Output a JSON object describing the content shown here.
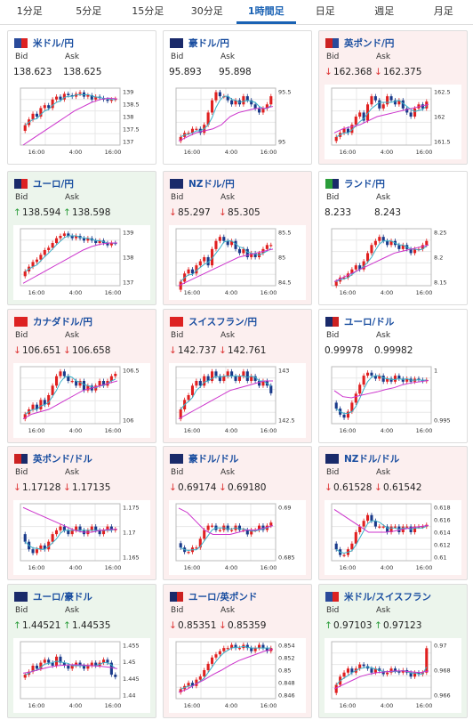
{
  "tabs": [
    {
      "label": "1分足",
      "active": false
    },
    {
      "label": "5分足",
      "active": false
    },
    {
      "label": "15分足",
      "active": false
    },
    {
      "label": "30分足",
      "active": false
    },
    {
      "label": "1時間足",
      "active": true
    },
    {
      "label": "日足",
      "active": false
    },
    {
      "label": "週足",
      "active": false
    },
    {
      "label": "月足",
      "active": false
    }
  ],
  "bid_label": "Bid",
  "ask_label": "Ask",
  "x_ticks": [
    "16:00",
    "4:00",
    "16:00"
  ],
  "colors": {
    "up": "#2a9d3a",
    "down": "#d33333",
    "ma_short": "#3ab0c8",
    "ma_long": "#cc33cc",
    "candle_up": "#e02020",
    "candle_down": "#1a3a8a"
  },
  "cards": [
    {
      "pair": "米ドル/円",
      "flag": [
        "#2a4a9a",
        "#d22"
      ],
      "state": "neutral",
      "dir": "",
      "bid": "138.623",
      "ask": "138.625",
      "chart_data": {
        "type": "candlestick",
        "y_ticks": [
          "139",
          "138.5",
          "138",
          "137.5",
          "137"
        ],
        "ylim": [
          137,
          139
        ],
        "closes": [
          137.7,
          137.9,
          138.1,
          138.0,
          138.3,
          138.4,
          138.3,
          138.6,
          138.7,
          138.6,
          138.8,
          138.75,
          138.7,
          138.8,
          138.85,
          138.7,
          138.75,
          138.6,
          138.7,
          138.65,
          138.6,
          138.55,
          138.6,
          138.62
        ],
        "ma_long": [
          137.0,
          137.2,
          137.4,
          137.6,
          137.8,
          138.0,
          138.2,
          138.35,
          138.5,
          138.6,
          138.65,
          138.62
        ]
      }
    },
    {
      "pair": "豪ドル/円",
      "flag": [
        "#1a2a6a",
        "#1a2a6a"
      ],
      "state": "neutral",
      "dir": "",
      "bid": "95.893",
      "ask": "95.898",
      "chart_data": {
        "type": "candlestick",
        "y_ticks": [
          "95.5",
          "95"
        ],
        "ylim": [
          94.7,
          96.1
        ],
        "closes": [
          94.9,
          95.0,
          95.0,
          95.1,
          95.1,
          95.0,
          95.2,
          95.5,
          95.8,
          96.0,
          95.9,
          95.9,
          95.8,
          95.7,
          95.8,
          95.7,
          95.9,
          95.8,
          95.7,
          95.6,
          95.5,
          95.6,
          95.7,
          95.9
        ],
        "ma_long": [
          94.8,
          94.9,
          95.0,
          95.05,
          95.1,
          95.2,
          95.4,
          95.5,
          95.55,
          95.6,
          95.6,
          95.65
        ]
      }
    },
    {
      "pair": "英ポンド/円",
      "flag": [
        "#c22",
        "#2a4a9a"
      ],
      "state": "down",
      "dir": "down",
      "bid": "162.368",
      "ask": "162.375",
      "chart_data": {
        "type": "candlestick",
        "y_ticks": [
          "162.5",
          "162",
          "161.5"
        ],
        "ylim": [
          161.3,
          162.7
        ],
        "closes": [
          161.5,
          161.6,
          161.7,
          161.6,
          161.8,
          162.0,
          162.1,
          161.9,
          162.3,
          162.5,
          162.4,
          162.2,
          162.3,
          162.5,
          162.4,
          162.3,
          162.4,
          162.2,
          162.1,
          162.0,
          162.2,
          162.3,
          162.2,
          162.37
        ],
        "ma_long": [
          161.6,
          161.7,
          161.75,
          161.8,
          161.9,
          162.0,
          162.05,
          162.1,
          162.15,
          162.2,
          162.25,
          162.3
        ]
      }
    },
    {
      "pair": "ユーロ/円",
      "flag": [
        "#1a2a6a",
        "#d22"
      ],
      "state": "up",
      "dir": "up",
      "bid": "138.594",
      "ask": "138.598",
      "chart_data": {
        "type": "candlestick",
        "y_ticks": [
          "139",
          "138",
          "137"
        ],
        "ylim": [
          136.8,
          139.2
        ],
        "closes": [
          137.4,
          137.6,
          137.8,
          137.9,
          138.1,
          138.3,
          138.4,
          138.6,
          138.8,
          138.9,
          139.0,
          138.9,
          138.8,
          138.9,
          138.8,
          138.7,
          138.8,
          138.7,
          138.6,
          138.7,
          138.6,
          138.5,
          138.6,
          138.59
        ],
        "ma_long": [
          136.9,
          137.1,
          137.3,
          137.5,
          137.7,
          137.9,
          138.1,
          138.3,
          138.45,
          138.55,
          138.6,
          138.6
        ]
      }
    },
    {
      "pair": "NZドル/円",
      "flag": [
        "#1a2a6a",
        "#1a2a6a"
      ],
      "state": "down",
      "dir": "down",
      "bid": "85.297",
      "ask": "85.305",
      "chart_data": {
        "type": "candlestick",
        "y_ticks": [
          "85.5",
          "85",
          "84.5"
        ],
        "ylim": [
          84.3,
          85.7
        ],
        "closes": [
          84.4,
          84.6,
          84.7,
          84.6,
          84.8,
          84.9,
          85.0,
          84.8,
          85.2,
          85.4,
          85.5,
          85.4,
          85.3,
          85.4,
          85.2,
          85.1,
          85.2,
          85.0,
          85.1,
          85.0,
          85.1,
          85.2,
          85.3,
          85.3
        ],
        "ma_long": [
          84.3,
          84.4,
          84.5,
          84.6,
          84.7,
          84.8,
          84.9,
          85.0,
          85.05,
          85.1,
          85.15,
          85.2
        ]
      }
    },
    {
      "pair": "ランド/円",
      "flag": [
        "#2a9d3a",
        "#1a2a6a"
      ],
      "state": "neutral",
      "dir": "",
      "bid": "8.233",
      "ask": "8.243",
      "chart_data": {
        "type": "candlestick",
        "y_ticks": [
          "8.25",
          "8.2",
          "8.15"
        ],
        "ylim": [
          8.13,
          8.27
        ],
        "closes": [
          8.14,
          8.15,
          8.15,
          8.16,
          8.17,
          8.18,
          8.17,
          8.19,
          8.21,
          8.23,
          8.24,
          8.25,
          8.24,
          8.23,
          8.24,
          8.23,
          8.22,
          8.23,
          8.22,
          8.21,
          8.22,
          8.22,
          8.23,
          8.24
        ],
        "ma_long": [
          8.14,
          8.15,
          8.16,
          8.17,
          8.18,
          8.19,
          8.2,
          8.21,
          8.215,
          8.22,
          8.225,
          8.23
        ]
      }
    },
    {
      "pair": "カナダドル/円",
      "flag": [
        "#d22",
        "#d22"
      ],
      "state": "down",
      "dir": "down",
      "bid": "106.651",
      "ask": "106.658",
      "chart_data": {
        "type": "candlestick",
        "y_ticks": [
          "106.5",
          "106"
        ],
        "ylim": [
          105.6,
          106.8
        ],
        "closes": [
          105.8,
          105.9,
          106.0,
          105.9,
          106.1,
          106.0,
          106.2,
          106.4,
          106.6,
          106.7,
          106.6,
          106.5,
          106.5,
          106.4,
          106.5,
          106.3,
          106.4,
          106.3,
          106.4,
          106.5,
          106.4,
          106.5,
          106.6,
          106.65
        ],
        "ma_long": [
          105.7,
          105.8,
          105.85,
          105.9,
          106.0,
          106.1,
          106.2,
          106.3,
          106.35,
          106.4,
          106.45,
          106.5
        ]
      }
    },
    {
      "pair": "スイスフラン/円",
      "flag": [
        "#d22",
        "#d22"
      ],
      "state": "down",
      "dir": "down",
      "bid": "142.737",
      "ask": "142.761",
      "chart_data": {
        "type": "candlestick",
        "y_ticks": [
          "143",
          "142.5"
        ],
        "ylim": [
          142.1,
          143.3
        ],
        "closes": [
          142.4,
          142.6,
          142.7,
          142.9,
          143.0,
          142.9,
          143.1,
          143.0,
          143.2,
          143.1,
          143.0,
          143.1,
          143.2,
          143.1,
          143.0,
          143.1,
          143.2,
          143.0,
          143.1,
          143.0,
          142.9,
          143.0,
          142.9,
          142.74
        ],
        "ma_long": [
          142.2,
          142.3,
          142.4,
          142.5,
          142.6,
          142.7,
          142.8,
          142.85,
          142.9,
          142.95,
          143.0,
          143.0
        ]
      }
    },
    {
      "pair": "ユーロ/ドル",
      "flag": [
        "#1a2a6a",
        "#c22"
      ],
      "state": "neutral",
      "dir": "",
      "bid": "0.99978",
      "ask": "0.99982",
      "chart_data": {
        "type": "candlestick",
        "y_ticks": [
          "1",
          "0.995"
        ],
        "ylim": [
          0.9925,
          1.002
        ],
        "closes": [
          0.995,
          0.994,
          0.9935,
          0.9945,
          0.996,
          0.9975,
          0.999,
          1.0005,
          1.001,
          1.0005,
          1.0,
          1.0005,
          0.9995,
          1.0,
          0.9995,
          1.0005,
          1.0,
          0.9995,
          1.0,
          0.9995,
          1.0,
          0.9998,
          0.9996,
          0.9998
        ],
        "ma_long": [
          0.998,
          0.997,
          0.9968,
          0.9972,
          0.9975,
          0.9978,
          0.9982,
          0.9985,
          0.999,
          0.9993,
          0.9995,
          0.9997
        ]
      }
    },
    {
      "pair": "英ポンド/ドル",
      "flag": [
        "#c22",
        "#1a2a6a"
      ],
      "state": "down",
      "dir": "down",
      "bid": "1.17128",
      "ask": "1.17135",
      "chart_data": {
        "type": "candlestick",
        "y_ticks": [
          "1.175",
          "1.17",
          "1.165"
        ],
        "ylim": [
          1.163,
          1.178
        ],
        "closes": [
          1.168,
          1.166,
          1.165,
          1.166,
          1.167,
          1.166,
          1.168,
          1.17,
          1.171,
          1.172,
          1.171,
          1.17,
          1.171,
          1.172,
          1.171,
          1.17,
          1.171,
          1.172,
          1.171,
          1.17,
          1.171,
          1.172,
          1.171,
          1.1713
        ],
        "ma_long": [
          1.177,
          1.176,
          1.175,
          1.174,
          1.173,
          1.172,
          1.171,
          1.1705,
          1.1705,
          1.171,
          1.1712,
          1.1713
        ]
      }
    },
    {
      "pair": "豪ドル/ドル",
      "flag": [
        "#1a2a6a",
        "#1a2a6a"
      ],
      "state": "down",
      "dir": "down",
      "bid": "0.69174",
      "ask": "0.69180",
      "chart_data": {
        "type": "candlestick",
        "y_ticks": [
          "0.69",
          "0.685"
        ],
        "ylim": [
          0.683,
          0.696
        ],
        "closes": [
          0.686,
          0.685,
          0.685,
          0.686,
          0.686,
          0.688,
          0.69,
          0.691,
          0.691,
          0.69,
          0.69,
          0.691,
          0.69,
          0.69,
          0.691,
          0.69,
          0.69,
          0.689,
          0.69,
          0.69,
          0.691,
          0.69,
          0.691,
          0.6917
        ],
        "ma_long": [
          0.695,
          0.694,
          0.692,
          0.69,
          0.689,
          0.689,
          0.689,
          0.6895,
          0.69,
          0.69,
          0.6905,
          0.691
        ]
      }
    },
    {
      "pair": "NZドル/ドル",
      "flag": [
        "#1a2a6a",
        "#1a2a6a"
      ],
      "state": "down",
      "dir": "down",
      "bid": "0.61528",
      "ask": "0.61542",
      "chart_data": {
        "type": "candlestick",
        "y_ticks": [
          "0.618",
          "0.616",
          "0.614",
          "0.612",
          "0.61"
        ],
        "ylim": [
          0.609,
          0.619
        ],
        "closes": [
          0.611,
          0.61,
          0.61,
          0.611,
          0.612,
          0.614,
          0.615,
          0.616,
          0.617,
          0.616,
          0.615,
          0.615,
          0.615,
          0.614,
          0.615,
          0.615,
          0.614,
          0.615,
          0.615,
          0.614,
          0.615,
          0.615,
          0.615,
          0.6153
        ],
        "ma_long": [
          0.618,
          0.617,
          0.616,
          0.615,
          0.614,
          0.614,
          0.614,
          0.6142,
          0.6145,
          0.6148,
          0.615,
          0.6152
        ]
      }
    },
    {
      "pair": "ユーロ/豪ドル",
      "flag": [
        "#1a2a6a",
        "#1a2a6a"
      ],
      "state": "up",
      "dir": "up",
      "bid": "1.44521",
      "ask": "1.44535",
      "chart_data": {
        "type": "candlestick",
        "y_ticks": [
          "1.455",
          "1.45",
          "1.445",
          "1.44"
        ],
        "ylim": [
          1.438,
          1.457
        ],
        "closes": [
          1.446,
          1.447,
          1.449,
          1.448,
          1.45,
          1.451,
          1.45,
          1.449,
          1.452,
          1.45,
          1.449,
          1.448,
          1.449,
          1.45,
          1.449,
          1.448,
          1.449,
          1.45,
          1.449,
          1.45,
          1.451,
          1.45,
          1.446,
          1.4452
        ],
        "ma_long": [
          1.4465,
          1.447,
          1.4478,
          1.4485,
          1.449,
          1.4492,
          1.4493,
          1.4492,
          1.449,
          1.4488,
          1.4485,
          1.448
        ]
      }
    },
    {
      "pair": "ユーロ/英ポンド",
      "flag": [
        "#1a2a6a",
        "#c22"
      ],
      "state": "down",
      "dir": "down",
      "bid": "0.85351",
      "ask": "0.85359",
      "chart_data": {
        "type": "candlestick",
        "y_ticks": [
          "0.854",
          "0.852",
          "0.85",
          "0.848",
          "0.846"
        ],
        "ylim": [
          0.8455,
          0.8545
        ],
        "closes": [
          0.847,
          0.8475,
          0.848,
          0.8475,
          0.8485,
          0.849,
          0.85,
          0.851,
          0.852,
          0.8525,
          0.853,
          0.8535,
          0.8535,
          0.854,
          0.8535,
          0.8535,
          0.854,
          0.8535,
          0.853,
          0.8535,
          0.854,
          0.8535,
          0.853,
          0.8535
        ],
        "ma_long": [
          0.8465,
          0.847,
          0.8478,
          0.8485,
          0.8493,
          0.85,
          0.8508,
          0.8515,
          0.852,
          0.8525,
          0.853,
          0.8533
        ]
      }
    },
    {
      "pair": "米ドル/スイスフラン",
      "flag": [
        "#2a4a9a",
        "#d22"
      ],
      "state": "up",
      "dir": "up",
      "bid": "0.97103",
      "ask": "0.97123",
      "chart_data": {
        "type": "candlestick",
        "y_ticks": [
          "0.97",
          "0.968",
          "0.966"
        ],
        "ylim": [
          0.9648,
          0.9718
        ],
        "closes": [
          0.9665,
          0.9675,
          0.968,
          0.9685,
          0.968,
          0.9685,
          0.969,
          0.9688,
          0.9685,
          0.968,
          0.9685,
          0.9682,
          0.9678,
          0.968,
          0.9685,
          0.9682,
          0.968,
          0.9683,
          0.968,
          0.9675,
          0.968,
          0.9678,
          0.968,
          0.971
        ],
        "ma_long": [
          0.966,
          0.9665,
          0.967,
          0.9675,
          0.9678,
          0.968,
          0.9681,
          0.9682,
          0.9682,
          0.9681,
          0.968,
          0.9682
        ]
      }
    }
  ]
}
